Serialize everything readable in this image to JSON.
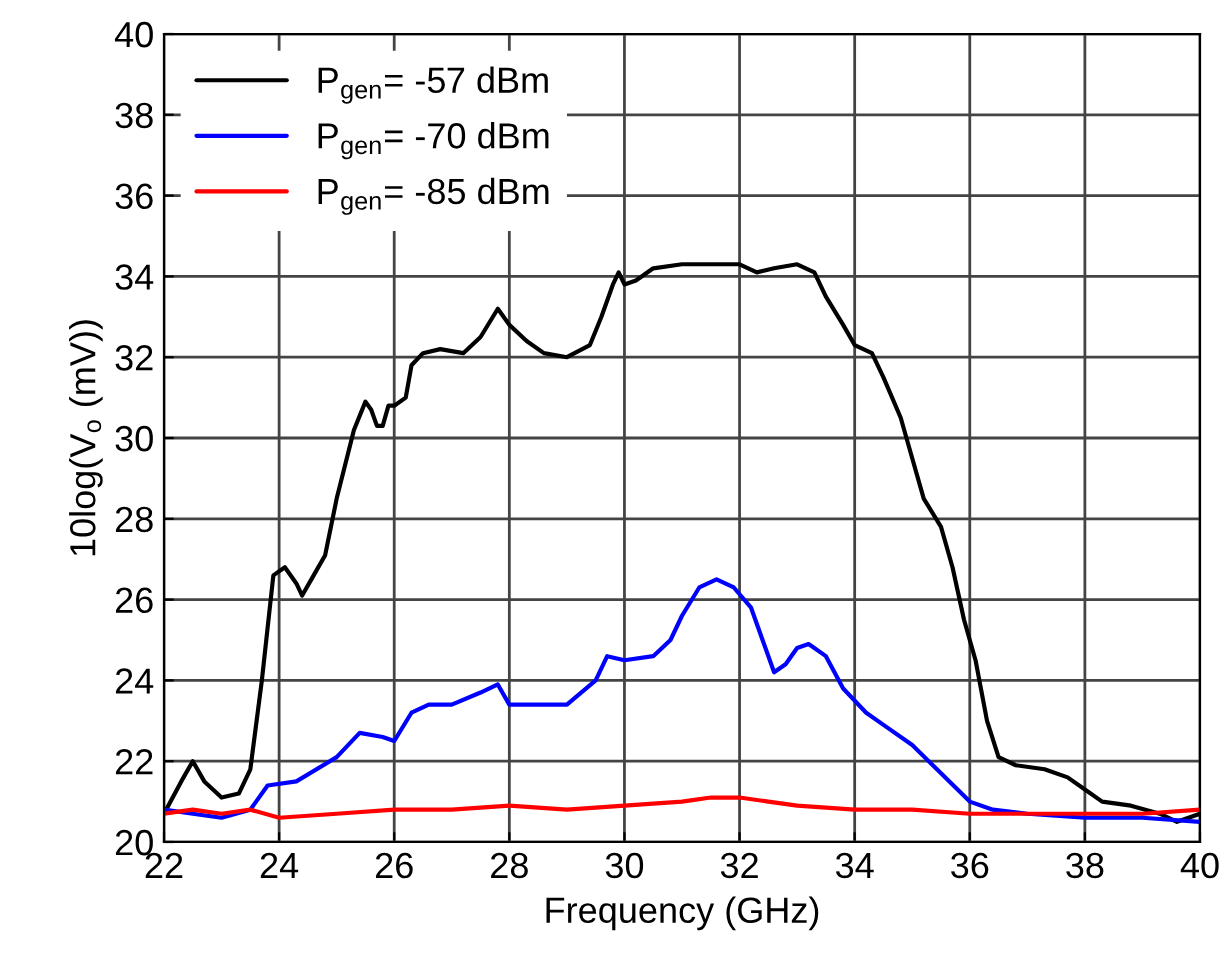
{
  "chart_data": {
    "type": "line",
    "xlabel": "Frequency (GHz)",
    "ylabel": "10log(V$_{o}$ (mV))",
    "xlim": [
      22,
      40
    ],
    "ylim": [
      20,
      40
    ],
    "xticks": [
      22,
      24,
      26,
      28,
      30,
      32,
      34,
      36,
      38,
      40
    ],
    "yticks": [
      20,
      22,
      24,
      26,
      28,
      30,
      32,
      34,
      36,
      38,
      40
    ],
    "grid": true,
    "legend": "top left",
    "line_style": "solid",
    "series": [
      {
        "name": "P$_{gen}$= -57 dBm",
        "color": "#000000",
        "x": [
          22,
          22.3,
          22.5,
          22.7,
          23.0,
          23.3,
          23.5,
          23.7,
          23.9,
          24.1,
          24.3,
          24.4,
          24.6,
          24.8,
          25.0,
          25.3,
          25.5,
          25.6,
          25.7,
          25.8,
          25.9,
          26.0,
          26.2,
          26.3,
          26.5,
          26.8,
          27.2,
          27.5,
          27.8,
          28.0,
          28.3,
          28.6,
          29.0,
          29.4,
          29.6,
          29.8,
          29.9,
          30.0,
          30.2,
          30.5,
          31.0,
          32.0,
          32.3,
          32.6,
          33.0,
          33.3,
          33.5,
          33.8,
          34.0,
          34.3,
          34.5,
          34.8,
          35.0,
          35.2,
          35.5,
          35.7,
          35.9,
          36.1,
          36.3,
          36.5,
          36.8,
          37.3,
          37.7,
          38.0,
          38.3,
          38.8,
          39.3,
          39.6,
          40
        ],
        "values": [
          20.7,
          21.5,
          22.0,
          21.5,
          21.1,
          21.2,
          21.8,
          24,
          26.6,
          26.8,
          26.4,
          26.1,
          26.6,
          27.1,
          28.5,
          30.2,
          30.9,
          30.7,
          30.3,
          30.3,
          30.8,
          30.8,
          31,
          31.8,
          32.1,
          32.2,
          32.1,
          32.5,
          33.2,
          32.8,
          32.4,
          32.1,
          32.0,
          32.3,
          33.0,
          33.8,
          34.1,
          33.8,
          33.9,
          34.2,
          34.3,
          34.3,
          34.1,
          34.2,
          34.3,
          34.1,
          33.5,
          32.8,
          32.3,
          32.1,
          31.5,
          30.5,
          29.5,
          28.5,
          27.8,
          26.8,
          25.5,
          24.5,
          23.0,
          22.1,
          21.9,
          21.8,
          21.6,
          21.3,
          21.0,
          20.9,
          20.7,
          20.5,
          20.7
        ]
      },
      {
        "name": "P$_{gen}$= -70 dBm",
        "color": "#0000ff",
        "x": [
          22,
          22.5,
          23,
          23.5,
          23.8,
          24.3,
          25.0,
          25.4,
          25.8,
          26.0,
          26.3,
          26.6,
          27.0,
          27.5,
          27.8,
          28.0,
          28.5,
          29.0,
          29.5,
          29.7,
          30.0,
          30.5,
          30.8,
          31.0,
          31.3,
          31.6,
          31.9,
          32.2,
          32.6,
          32.8,
          33.0,
          33.2,
          33.5,
          33.8,
          34.2,
          34.5,
          35.0,
          35.5,
          36.0,
          36.4,
          37.0,
          38.0,
          39.0,
          40
        ],
        "values": [
          20.8,
          20.7,
          20.6,
          20.8,
          21.4,
          21.5,
          22.1,
          22.7,
          22.6,
          22.5,
          23.2,
          23.4,
          23.4,
          23.7,
          23.9,
          23.4,
          23.4,
          23.4,
          24.0,
          24.6,
          24.5,
          24.6,
          25.0,
          25.6,
          26.3,
          26.5,
          26.3,
          25.8,
          24.2,
          24.4,
          24.8,
          24.9,
          24.6,
          23.8,
          23.2,
          22.9,
          22.4,
          21.7,
          21.0,
          20.8,
          20.7,
          20.6,
          20.6,
          20.5
        ]
      },
      {
        "name": "P$_{gen}$= -85 dBm",
        "color": "#ff0000",
        "x": [
          22,
          22.5,
          23,
          23.5,
          24,
          25,
          26,
          27,
          28,
          29,
          30,
          31,
          31.5,
          32,
          32.5,
          33,
          34,
          35,
          36,
          37,
          38,
          39,
          40
        ],
        "values": [
          20.7,
          20.8,
          20.7,
          20.8,
          20.6,
          20.7,
          20.8,
          20.8,
          20.9,
          20.8,
          20.9,
          21.0,
          21.1,
          21.1,
          21.0,
          20.9,
          20.8,
          20.8,
          20.7,
          20.7,
          20.7,
          20.7,
          20.8
        ]
      }
    ]
  }
}
